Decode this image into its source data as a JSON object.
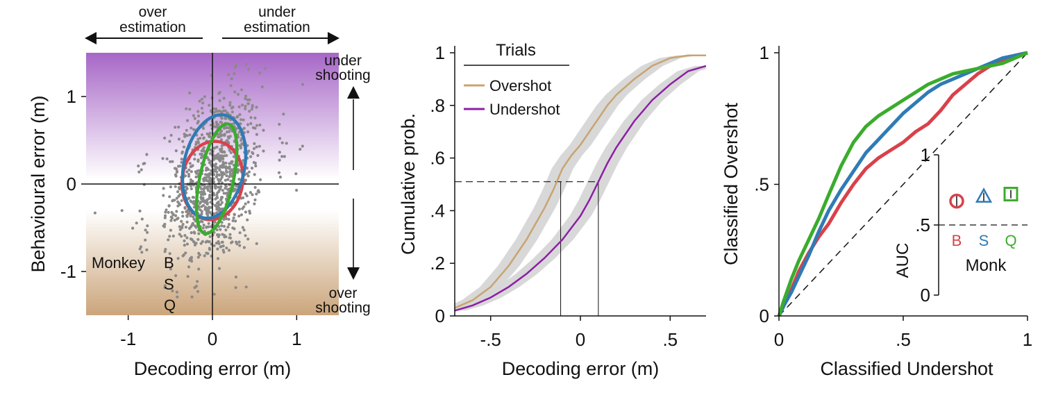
{
  "colors": {
    "monkey_B": "#d9414a",
    "monkey_S": "#2f7bb5",
    "monkey_Q": "#3aac2c",
    "overshot": "#c8a470",
    "undershot": "#8c1fa5",
    "scatter": "#8a8a8a",
    "band": "#d6d6d6",
    "top_region": "#a25fc4",
    "bottom_region": "#c8a074"
  },
  "chart_data": [
    {
      "type": "scatter",
      "xlabel": "Decoding error (m)",
      "ylabel": "Behavioural error (m)",
      "xlim": [
        -1.5,
        1.5
      ],
      "ylim": [
        -1.5,
        1.5
      ],
      "xticks": [
        -1,
        0,
        1
      ],
      "xtick_labels": [
        "-1",
        "0",
        "1"
      ],
      "yticks": [
        -1,
        0,
        1
      ],
      "ytick_labels": [
        "-1",
        "0",
        "1"
      ],
      "top_annotations": [
        "over\nestimation",
        "under\nestimation"
      ],
      "right_annotations": [
        "under\nshooting",
        "over\nshooting"
      ],
      "legend_title": "Monkey",
      "n_points": 1100,
      "point_distribution": {
        "mean_x": 0.02,
        "mean_y": 0.05,
        "sd_x": 0.28,
        "sd_y": 0.5,
        "corr": 0.3
      },
      "series": [
        {
          "name": "B",
          "ellipse": {
            "cx": 0.0,
            "cy": 0.04,
            "rx": 0.36,
            "ry": 0.45,
            "angle": -8
          }
        },
        {
          "name": "S",
          "ellipse": {
            "cx": 0.02,
            "cy": 0.2,
            "rx": 0.36,
            "ry": 0.6,
            "angle": -12
          }
        },
        {
          "name": "Q",
          "ellipse": {
            "cx": 0.05,
            "cy": 0.06,
            "rx": 0.2,
            "ry": 0.64,
            "angle": -12
          }
        }
      ]
    },
    {
      "type": "line",
      "xlabel": "Decoding error (m)",
      "ylabel": "Cumulative prob.",
      "xlim": [
        -0.7,
        0.7
      ],
      "ylim": [
        0,
        1
      ],
      "xticks": [
        -0.5,
        0,
        0.5
      ],
      "xtick_labels": [
        "-.5",
        "0",
        ".5"
      ],
      "yticks": [
        0,
        0.2,
        0.4,
        0.6,
        0.8,
        1
      ],
      "ytick_labels": [
        "0",
        ".2",
        ".4",
        ".6",
        ".8",
        "1"
      ],
      "legend_title": "Trials",
      "series": [
        {
          "name": "Overshot",
          "x": [
            -0.7,
            -0.6,
            -0.5,
            -0.4,
            -0.3,
            -0.2,
            -0.15,
            -0.1,
            -0.05,
            0,
            0.05,
            0.1,
            0.15,
            0.2,
            0.3,
            0.4,
            0.5,
            0.6,
            0.7
          ],
          "y": [
            0.03,
            0.06,
            0.11,
            0.19,
            0.29,
            0.41,
            0.48,
            0.56,
            0.61,
            0.65,
            0.7,
            0.75,
            0.8,
            0.84,
            0.9,
            0.95,
            0.98,
            0.99,
            0.99
          ]
        },
        {
          "name": "Undershot",
          "x": [
            -0.7,
            -0.6,
            -0.5,
            -0.4,
            -0.3,
            -0.2,
            -0.1,
            0,
            0.05,
            0.1,
            0.15,
            0.2,
            0.3,
            0.4,
            0.5,
            0.6,
            0.7
          ],
          "y": [
            0.02,
            0.04,
            0.07,
            0.11,
            0.16,
            0.22,
            0.29,
            0.38,
            0.44,
            0.51,
            0.58,
            0.64,
            0.74,
            0.82,
            0.88,
            0.93,
            0.95
          ]
        }
      ],
      "reference": {
        "y": 0.51,
        "x_overshot": -0.11,
        "x_undershot": 0.1
      }
    },
    {
      "type": "line",
      "xlabel": "Classified Undershot",
      "ylabel": "Classified Overshot",
      "xlim": [
        0,
        1
      ],
      "ylim": [
        0,
        1
      ],
      "xticks": [
        0,
        0.5,
        1
      ],
      "xtick_labels": [
        "0",
        ".5",
        "1"
      ],
      "yticks": [
        0,
        0.5,
        1
      ],
      "ytick_labels": [
        "0",
        ".5",
        "1"
      ],
      "series": [
        {
          "name": "B",
          "x": [
            0,
            0.02,
            0.05,
            0.08,
            0.12,
            0.16,
            0.2,
            0.25,
            0.3,
            0.35,
            0.4,
            0.45,
            0.5,
            0.55,
            0.6,
            0.65,
            0.7,
            0.75,
            0.8,
            0.85,
            0.9,
            0.95,
            1
          ],
          "y": [
            0,
            0.04,
            0.1,
            0.17,
            0.24,
            0.3,
            0.35,
            0.43,
            0.5,
            0.56,
            0.6,
            0.63,
            0.66,
            0.7,
            0.73,
            0.78,
            0.84,
            0.88,
            0.92,
            0.95,
            0.97,
            0.99,
            1
          ]
        },
        {
          "name": "S",
          "x": [
            0,
            0.02,
            0.05,
            0.08,
            0.12,
            0.16,
            0.2,
            0.25,
            0.3,
            0.35,
            0.4,
            0.45,
            0.5,
            0.55,
            0.6,
            0.65,
            0.7,
            0.75,
            0.8,
            0.85,
            0.9,
            0.95,
            1
          ],
          "y": [
            0,
            0.04,
            0.09,
            0.15,
            0.23,
            0.32,
            0.4,
            0.48,
            0.55,
            0.62,
            0.67,
            0.72,
            0.77,
            0.81,
            0.85,
            0.88,
            0.9,
            0.92,
            0.94,
            0.96,
            0.98,
            0.99,
            1
          ]
        },
        {
          "name": "Q",
          "x": [
            0,
            0.02,
            0.05,
            0.08,
            0.12,
            0.16,
            0.2,
            0.25,
            0.3,
            0.35,
            0.4,
            0.45,
            0.5,
            0.55,
            0.6,
            0.65,
            0.7,
            0.75,
            0.8,
            0.85,
            0.9,
            0.95,
            1
          ],
          "y": [
            0,
            0.06,
            0.14,
            0.21,
            0.29,
            0.37,
            0.46,
            0.57,
            0.66,
            0.72,
            0.76,
            0.79,
            0.82,
            0.85,
            0.88,
            0.9,
            0.92,
            0.93,
            0.94,
            0.95,
            0.96,
            0.98,
            1
          ]
        }
      ],
      "inset": {
        "ylabel": "AUC",
        "xlabel": "Monk",
        "ylim": [
          0,
          1
        ],
        "yticks": [
          0,
          0.5,
          1
        ],
        "ytick_labels": [
          "0",
          ".5",
          "1"
        ],
        "reference": 0.5,
        "series": [
          {
            "name": "B",
            "marker": "circle",
            "value": 0.67,
            "err": 0.04
          },
          {
            "name": "S",
            "marker": "triangle",
            "value": 0.7,
            "err": 0.03
          },
          {
            "name": "Q",
            "marker": "square",
            "value": 0.72,
            "err": 0.03
          }
        ]
      }
    }
  ]
}
